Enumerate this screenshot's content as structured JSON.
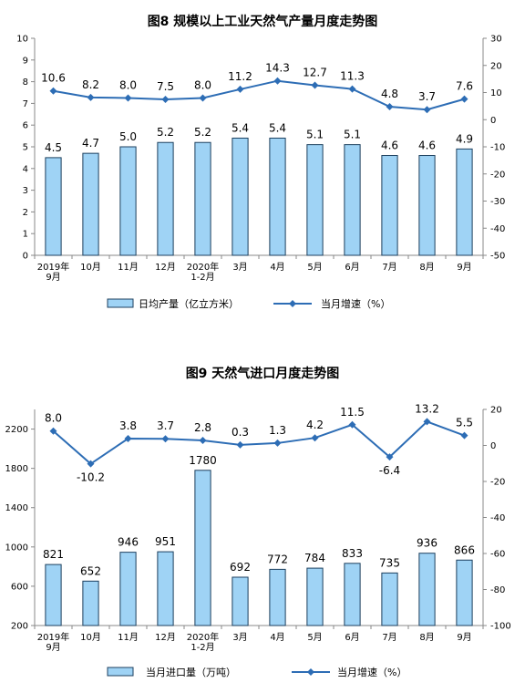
{
  "chart_data": [
    {
      "type": "bar",
      "title": "图8  规模以上工业天然气产量月度走势图",
      "categories": [
        [
          "2019年",
          "9月"
        ],
        [
          "10月"
        ],
        [
          "11月"
        ],
        [
          "12月"
        ],
        [
          "2020年",
          "1-2月"
        ],
        [
          "3月"
        ],
        [
          "4月"
        ],
        [
          "5月"
        ],
        [
          "6月"
        ],
        [
          "7月"
        ],
        [
          "8月"
        ],
        [
          "9月"
        ]
      ],
      "bar_series": {
        "name": "日均产量（亿立方米）",
        "values": [
          4.5,
          4.7,
          5.0,
          5.2,
          5.2,
          5.4,
          5.4,
          5.1,
          5.1,
          4.6,
          4.6,
          4.9
        ],
        "labels": [
          "4.5",
          "4.7",
          "5.0",
          "5.2",
          "5.2",
          "5.4",
          "5.4",
          "5.1",
          "5.1",
          "4.6",
          "4.6",
          "4.9"
        ]
      },
      "line_series": {
        "name": "当月增速（%）",
        "values": [
          10.6,
          8.2,
          8.0,
          7.5,
          8.0,
          11.2,
          14.3,
          12.7,
          11.3,
          4.8,
          3.7,
          7.6
        ],
        "labels": [
          "10.6",
          "8.2",
          "8.0",
          "7.5",
          "8.0",
          "11.2",
          "14.3",
          "12.7",
          "11.3",
          "4.8",
          "3.7",
          "7.6"
        ]
      },
      "y_left": {
        "ylim": [
          0,
          10
        ],
        "ticks": [
          0,
          1,
          2,
          3,
          4,
          5,
          6,
          7,
          8,
          9,
          10
        ]
      },
      "y_right": {
        "ylim": [
          -50,
          30
        ],
        "ticks": [
          -50,
          -40,
          -30,
          -20,
          -10,
          0,
          10,
          20,
          30
        ]
      },
      "legend_position": "bottom",
      "colors": {
        "bar_fill": "#9fd3f5",
        "bar_stroke": "#1c3f5e",
        "line": "#2d6db5"
      }
    },
    {
      "type": "bar",
      "title": "图9  天然气进口月度走势图",
      "categories": [
        [
          "2019年",
          "9月"
        ],
        [
          "10月"
        ],
        [
          "11月"
        ],
        [
          "12月"
        ],
        [
          "2020年",
          "1-2月"
        ],
        [
          "3月"
        ],
        [
          "4月"
        ],
        [
          "5月"
        ],
        [
          "6月"
        ],
        [
          "7月"
        ],
        [
          "8月"
        ],
        [
          "9月"
        ]
      ],
      "bar_series": {
        "name": "当月进口量（万吨）",
        "values": [
          821,
          652,
          946,
          951,
          1780,
          692,
          772,
          784,
          833,
          735,
          936,
          866
        ],
        "labels": [
          "821",
          "652",
          "946",
          "951",
          "1780",
          "692",
          "772",
          "784",
          "833",
          "735",
          "936",
          "866"
        ]
      },
      "line_series": {
        "name": "当月增速（%）",
        "values": [
          8.0,
          -10.2,
          3.8,
          3.7,
          2.8,
          0.3,
          1.3,
          4.2,
          11.5,
          -6.4,
          13.2,
          5.5
        ],
        "labels": [
          "8.0",
          "-10.2",
          "3.8",
          "3.7",
          "2.8",
          "0.3",
          "1.3",
          "4.2",
          "11.5",
          "-6.4",
          "13.2",
          "5.5"
        ]
      },
      "y_left": {
        "ylim": [
          200,
          2400
        ],
        "ticks": [
          200,
          600,
          1000,
          1400,
          1800,
          2200
        ]
      },
      "y_right": {
        "ylim": [
          -100,
          20
        ],
        "ticks": [
          -100,
          -80,
          -60,
          -40,
          -20,
          0,
          20
        ]
      },
      "legend_position": "bottom",
      "colors": {
        "bar_fill": "#9fd3f5",
        "bar_stroke": "#1c3f5e",
        "line": "#2d6db5"
      }
    }
  ]
}
